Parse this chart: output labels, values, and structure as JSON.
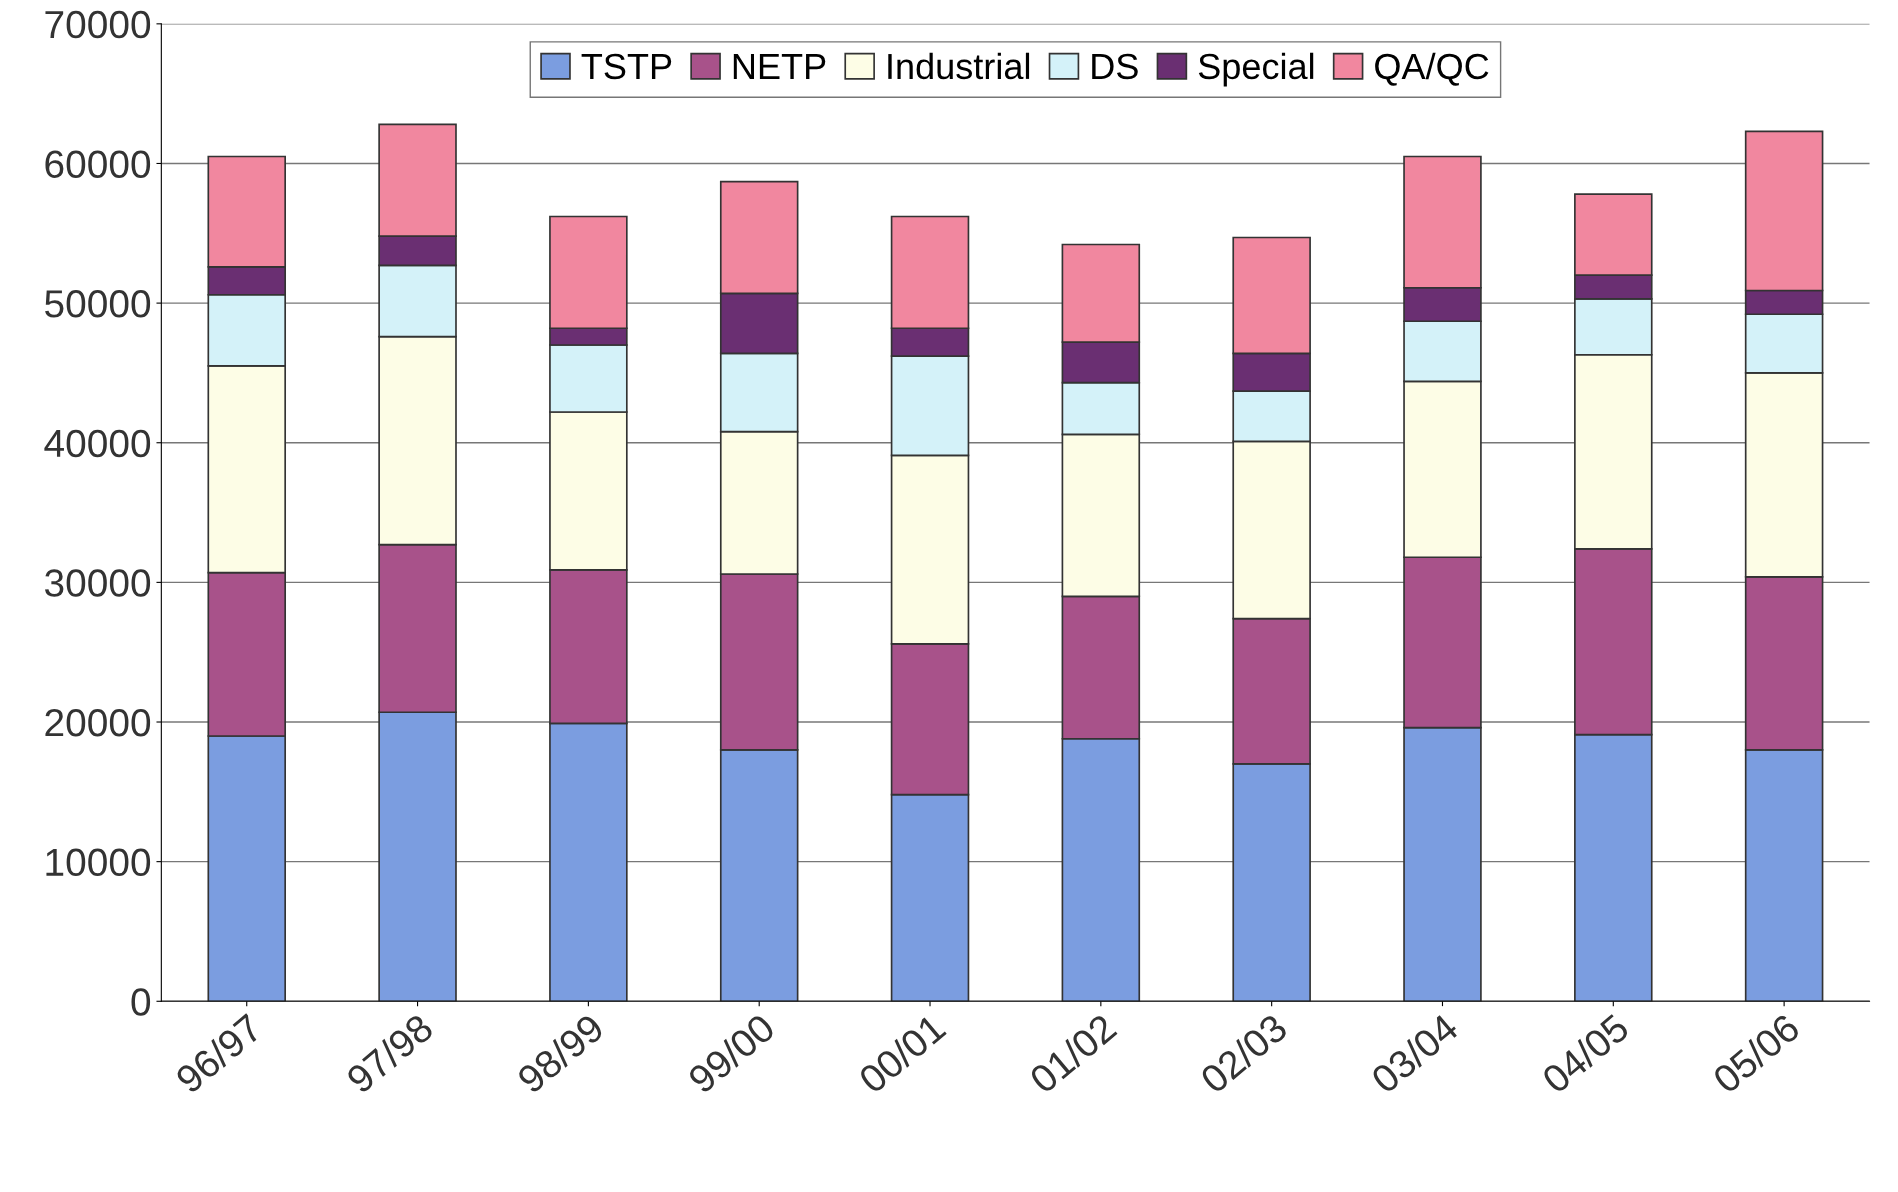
{
  "chart_data": {
    "type": "bar",
    "stacked": true,
    "categories": [
      "96/97",
      "97/98",
      "98/99",
      "99/00",
      "00/01",
      "01/02",
      "02/03",
      "03/04",
      "04/05",
      "05/06"
    ],
    "series": [
      {
        "name": "TSTP",
        "color": "#7b9de0",
        "values": [
          19000,
          20700,
          19900,
          18000,
          14800,
          18800,
          17000,
          19600,
          19100,
          18000
        ]
      },
      {
        "name": "NETP",
        "color": "#a8528a",
        "values": [
          11700,
          12000,
          11000,
          12600,
          10800,
          10200,
          10400,
          12200,
          13300,
          12400
        ]
      },
      {
        "name": "Industrial",
        "color": "#fdfde6",
        "values": [
          14800,
          14900,
          11300,
          10200,
          13500,
          11600,
          12700,
          12600,
          13900,
          14600
        ]
      },
      {
        "name": "DS",
        "color": "#d4f2f9",
        "values": [
          5100,
          5100,
          4800,
          5600,
          7100,
          3700,
          3600,
          4300,
          4000,
          4200
        ]
      },
      {
        "name": "Special",
        "color": "#6a2f72",
        "values": [
          2000,
          2100,
          1200,
          4300,
          2000,
          2900,
          2700,
          2400,
          1700,
          1700
        ]
      },
      {
        "name": "QA/QC",
        "color": "#f1879f",
        "values": [
          7900,
          8000,
          8000,
          8000,
          8000,
          7000,
          8300,
          9400,
          5800,
          11400
        ]
      }
    ],
    "ylim": [
      0,
      70000
    ],
    "yticks": [
      0,
      10000,
      20000,
      30000,
      40000,
      50000,
      60000,
      70000
    ],
    "grid": "y",
    "legend": "top"
  }
}
